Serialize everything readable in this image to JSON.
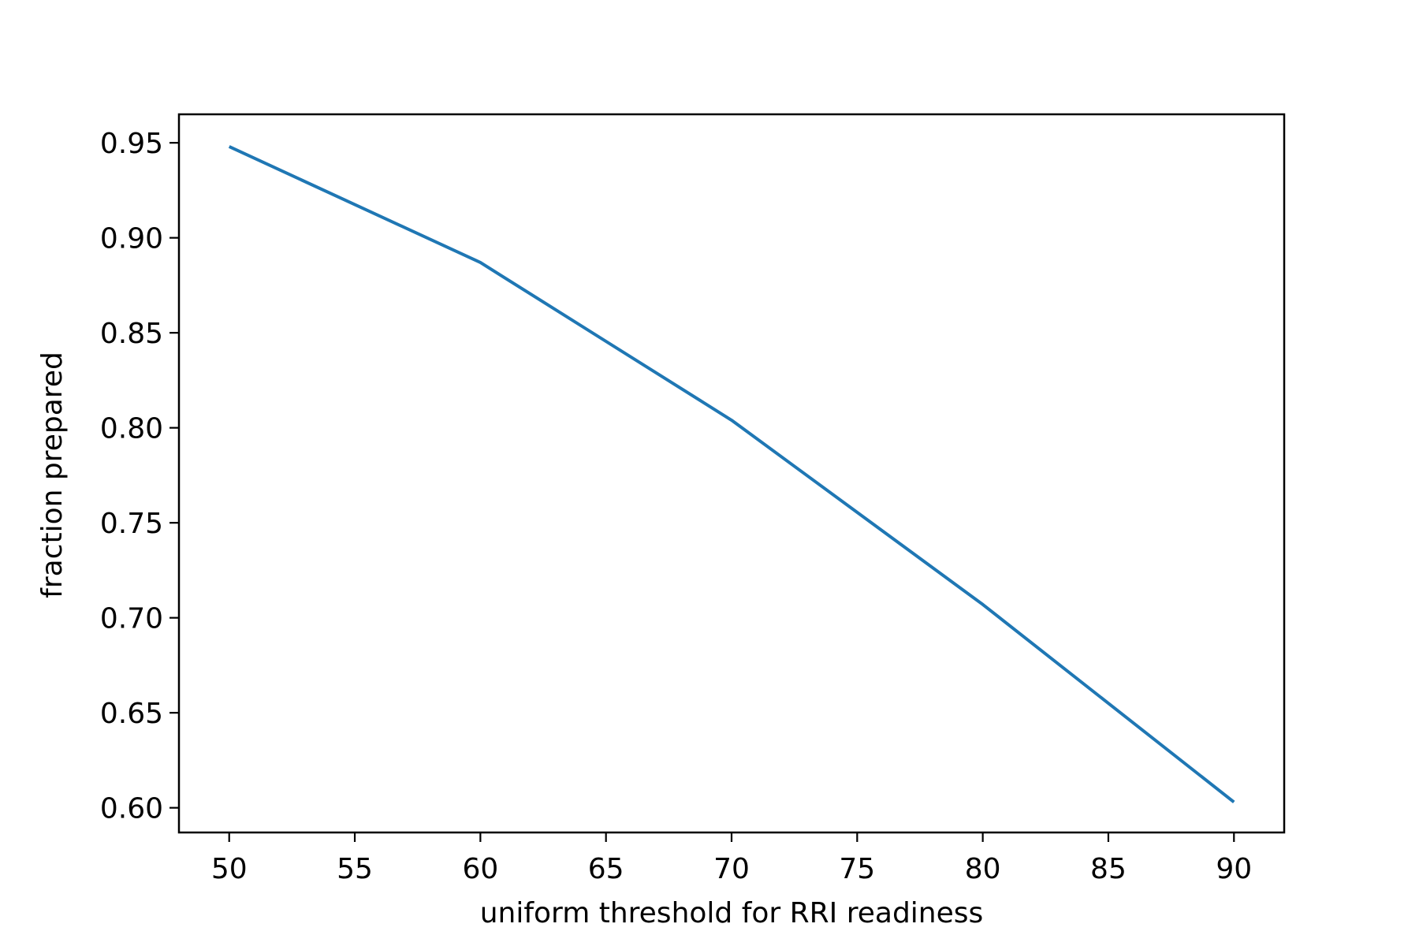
{
  "chart_data": {
    "type": "line",
    "title": "",
    "xlabel": "uniform threshold for RRI readiness",
    "ylabel": "fraction prepared",
    "xlim": [
      48,
      92
    ],
    "ylim": [
      0.587,
      0.965
    ],
    "x_ticks": [
      "50",
      "55",
      "60",
      "65",
      "70",
      "75",
      "80",
      "85",
      "90"
    ],
    "y_ticks": [
      "0.60",
      "0.65",
      "0.70",
      "0.75",
      "0.80",
      "0.85",
      "0.90",
      "0.95"
    ],
    "grid": false,
    "legend": "none",
    "series": [
      {
        "color": "#1f77b4",
        "x": [
          50,
          60,
          70,
          80,
          90
        ],
        "y": [
          0.948,
          0.887,
          0.804,
          0.707,
          0.603
        ]
      }
    ]
  }
}
